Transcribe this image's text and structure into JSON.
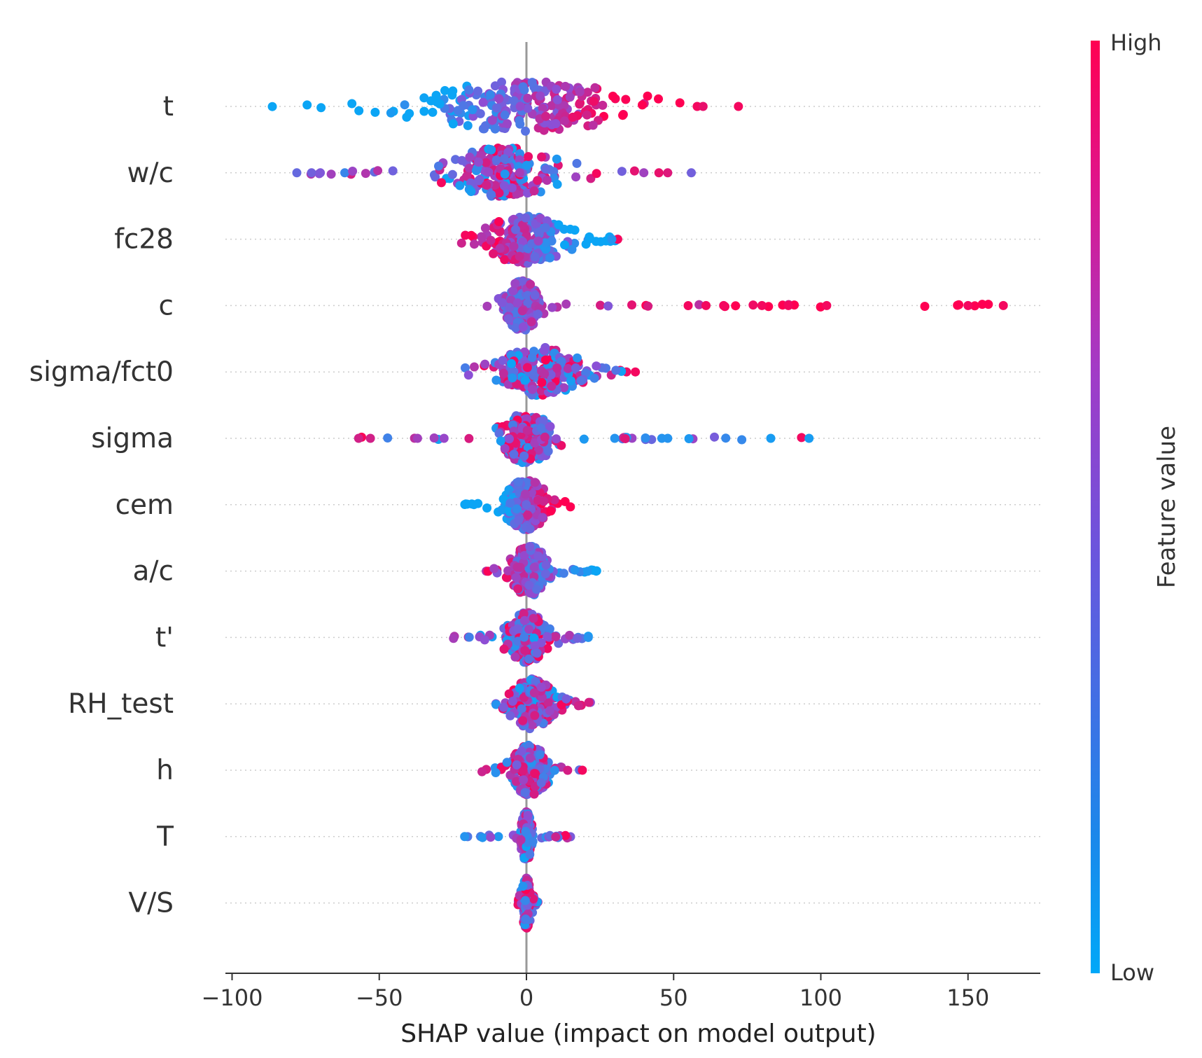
{
  "chart_data": {
    "type": "scatter",
    "subtype": "shap-beeswarm",
    "title": "",
    "xlabel": "SHAP value (impact on model output)",
    "ylabel": "",
    "xlim": [
      -102,
      175
    ],
    "xticks": [
      -100,
      -50,
      0,
      50,
      100,
      150
    ],
    "xtick_labels": [
      "−100",
      "−50",
      "0",
      "50",
      "100",
      "150"
    ],
    "features": [
      {
        "name": "t",
        "min": -89,
        "max": 72,
        "outliers": [
          [
            58,
            0.95
          ],
          [
            60,
            0.9
          ],
          [
            72,
            0.95
          ]
        ],
        "core": [
          -40,
          40
        ],
        "lowSide": "neg"
      },
      {
        "name": "w/c",
        "min": -78,
        "max": 56,
        "outliers": [
          [
            -78,
            0.35
          ],
          [
            -73,
            0.4
          ],
          [
            -70,
            0.45
          ],
          [
            45,
            0.9
          ],
          [
            48,
            0.85
          ],
          [
            56,
            0.4
          ]
        ],
        "core": [
          -30,
          15
        ],
        "lowSide": "mix"
      },
      {
        "name": "fc28",
        "min": -23,
        "max": 31,
        "outliers": [
          [
            31,
            0.95
          ],
          [
            29,
            0.1
          ]
        ],
        "core": [
          -15,
          15
        ],
        "lowSide": "pos"
      },
      {
        "name": "c",
        "min": -16,
        "max": 162,
        "outliers": [
          [
            61,
            0.95
          ],
          [
            67,
            0.95
          ],
          [
            80,
            0.95
          ],
          [
            89,
            0.95
          ],
          [
            102,
            0.95
          ],
          [
            150,
            0.95
          ],
          [
            162,
            0.95
          ]
        ],
        "core": [
          -8,
          5
        ],
        "lowSide": "neg"
      },
      {
        "name": "sigma/fct0",
        "min": -22,
        "max": 37,
        "outliers": [
          [
            37,
            0.95
          ]
        ],
        "core": [
          -12,
          20
        ],
        "lowSide": "mix"
      },
      {
        "name": "sigma",
        "min": -57,
        "max": 96,
        "outliers": [
          [
            -57,
            0.8
          ],
          [
            -53,
            0.8
          ],
          [
            -37,
            0.6
          ],
          [
            -28,
            0.55
          ],
          [
            30,
            0.1
          ],
          [
            46,
            0.1
          ],
          [
            48,
            0.1
          ],
          [
            83,
            0.05
          ],
          [
            96,
            0.05
          ]
        ],
        "core": [
          -10,
          10
        ],
        "lowSide": "mix"
      },
      {
        "name": "cem",
        "min": -21,
        "max": 17,
        "outliers": [],
        "core": [
          -8,
          8
        ],
        "lowSide": "neg"
      },
      {
        "name": "a/c",
        "min": -16,
        "max": 25,
        "outliers": [],
        "core": [
          -6,
          8
        ],
        "lowSide": "pos"
      },
      {
        "name": "t'",
        "min": -26,
        "max": 21,
        "outliers": [
          [
            21,
            0.1
          ]
        ],
        "core": [
          -8,
          8
        ],
        "lowSide": "mix"
      },
      {
        "name": "RH_test",
        "min": -11,
        "max": 23,
        "outliers": [],
        "core": [
          -6,
          10
        ],
        "lowSide": "mix"
      },
      {
        "name": "h",
        "min": -18,
        "max": 19,
        "outliers": [
          [
            19,
            0.95
          ]
        ],
        "core": [
          -6,
          8
        ],
        "lowSide": "mix"
      },
      {
        "name": "T",
        "min": -21,
        "max": 20,
        "outliers": [
          [
            -21,
            0.1
          ]
        ],
        "core": [
          -2,
          2
        ],
        "lowSide": "mix"
      },
      {
        "name": "V/S",
        "min": -3,
        "max": 4,
        "outliers": [],
        "core": [
          -1,
          1
        ],
        "lowSide": "mix"
      }
    ],
    "colorbar": {
      "title": "Feature value",
      "high_label": "High",
      "low_label": "Low",
      "low_color": "#1E88E5",
      "low_color_light": "#0BA5F5",
      "mid_color": "#8C4FD6",
      "high_color": "#FF0052"
    }
  }
}
